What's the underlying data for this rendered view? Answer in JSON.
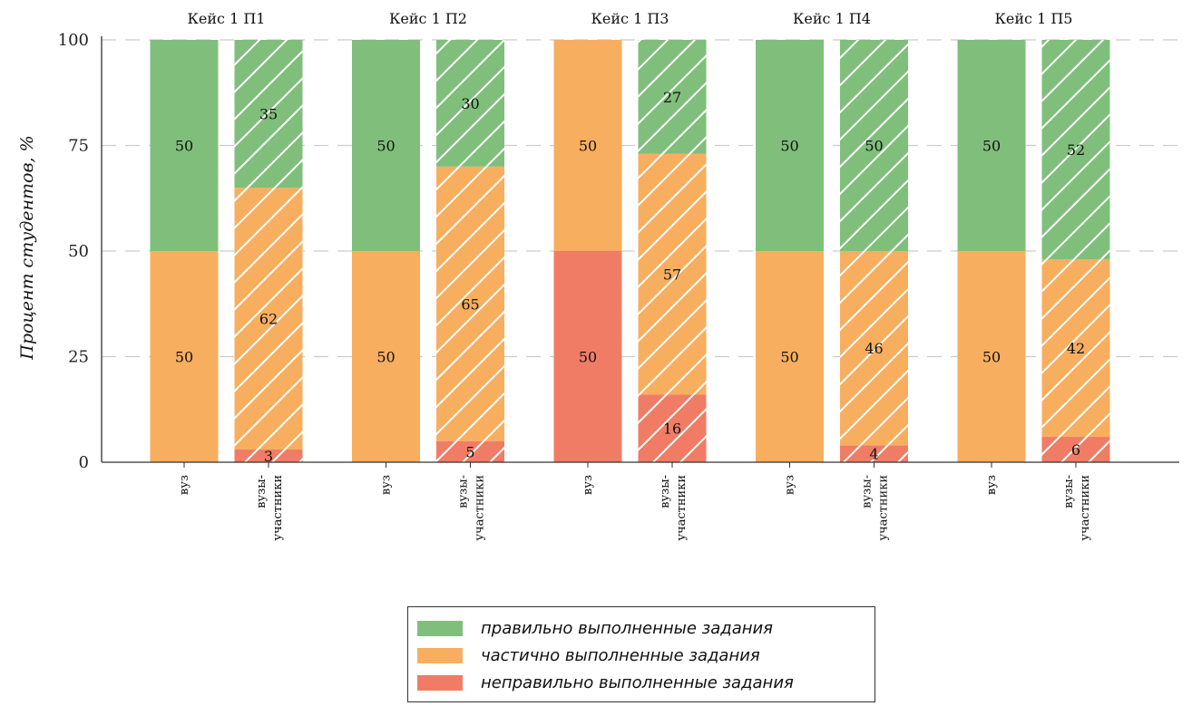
{
  "colors": {
    "correct": "#7fbf7b",
    "partial": "#f8ae5f",
    "wrong": "#f07c66",
    "hatch": "#ffffff",
    "grid": "#cccccc"
  },
  "chart_data": {
    "type": "bar",
    "stacked": true,
    "ylabel": "Процент студентов, %",
    "ylim": [
      0,
      100
    ],
    "yticks": [
      0,
      25,
      50,
      75,
      100
    ],
    "grid": "horizontal dashed",
    "legend_position": "bottom-center",
    "groups": [
      "Кейс 1 П1",
      "Кейс 1 П2",
      "Кейс 1 П3",
      "Кейс 1 П4",
      "Кейс 1 П5"
    ],
    "subcategories": [
      "вуз",
      "вузы-участники"
    ],
    "hatched_subcategory": "вузы-участники",
    "series": [
      {
        "name": "неправильно выполненные задания",
        "color_key": "wrong",
        "values": [
          [
            0,
            3
          ],
          [
            0,
            5
          ],
          [
            50,
            16
          ],
          [
            0,
            4
          ],
          [
            0,
            6
          ]
        ]
      },
      {
        "name": "частично выполненные задания",
        "color_key": "partial",
        "values": [
          [
            50,
            62
          ],
          [
            50,
            65
          ],
          [
            50,
            57
          ],
          [
            50,
            46
          ],
          [
            50,
            42
          ]
        ]
      },
      {
        "name": "правильно выполненные задания",
        "color_key": "correct",
        "values": [
          [
            50,
            35
          ],
          [
            50,
            30
          ],
          [
            0,
            27
          ],
          [
            50,
            50
          ],
          [
            50,
            52
          ]
        ]
      }
    ]
  },
  "legend": [
    {
      "label": "правильно выполненные задания",
      "color_key": "correct"
    },
    {
      "label": "частично выполненные задания",
      "color_key": "partial"
    },
    {
      "label": "неправильно выполненные задания",
      "color_key": "wrong"
    }
  ]
}
